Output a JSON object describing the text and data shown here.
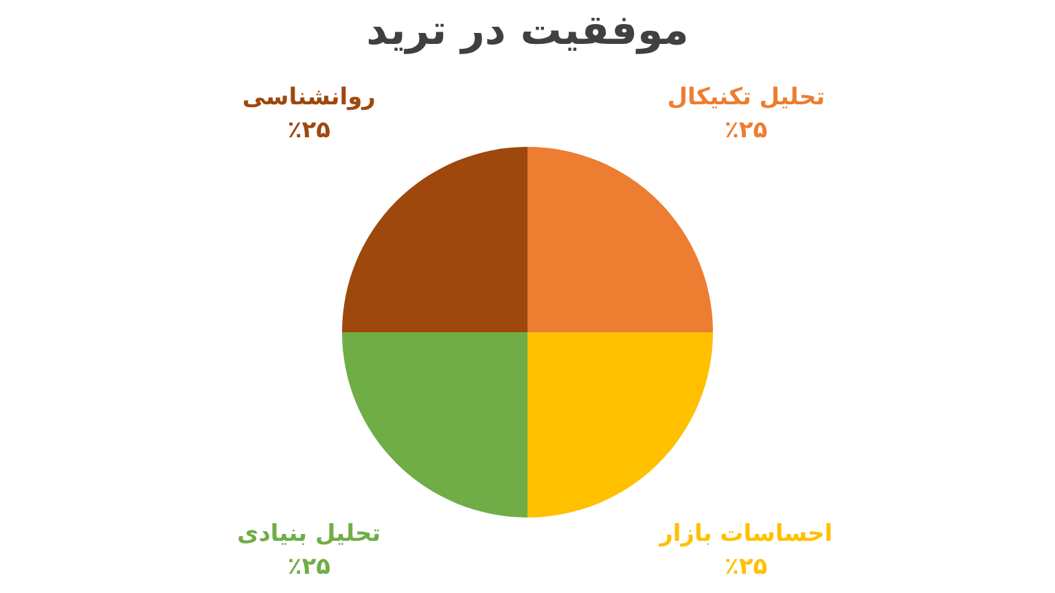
{
  "chart_data": {
    "type": "pie",
    "title": "موفقیت در ترید",
    "categories": [
      "تحلیل تکنیکال",
      "احساسات بازار",
      "تحلیل بنیادی",
      "روانشناسی"
    ],
    "values": [
      25,
      25,
      25,
      25
    ],
    "colors": [
      "#ed7d31",
      "#ffc000",
      "#70ad47",
      "#9e480e"
    ],
    "value_labels": [
      "٪۲۵",
      "٪۲۵",
      "٪۲۵",
      "٪۲۵"
    ],
    "legend": false
  }
}
